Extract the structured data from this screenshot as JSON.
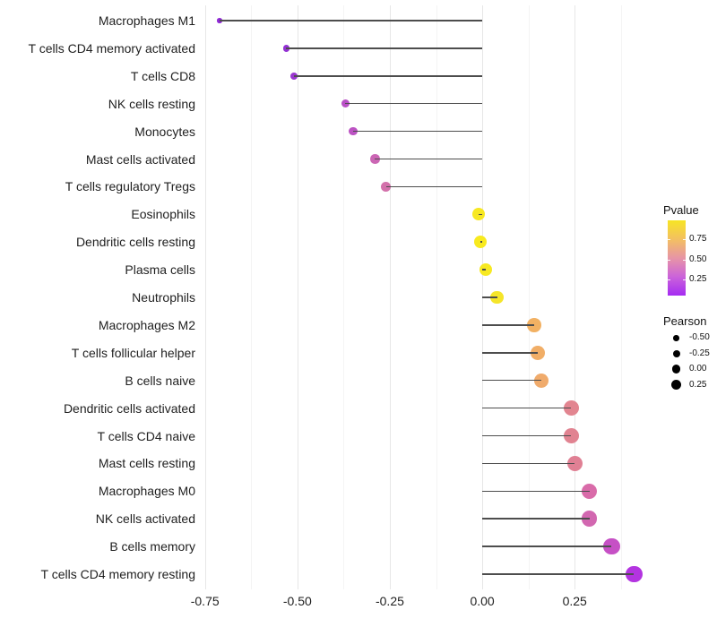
{
  "chart_data": {
    "type": "lollipop",
    "orientation": "horizontal",
    "title": "",
    "xlabel": "",
    "ylabel": "",
    "grid": "vertical-only",
    "x_axis": {
      "tick_labels": [
        "-0.75",
        "-0.50",
        "-0.25",
        "0.00",
        "0.25"
      ],
      "tick_values": [
        -0.75,
        -0.5,
        -0.25,
        0,
        0.25
      ],
      "minor_tick_values": [
        -0.625,
        -0.375,
        -0.125,
        0.125,
        0.375
      ],
      "min": -0.759,
      "max": 0.441,
      "baseline": 0
    },
    "categories": [
      "Macrophages M1",
      "T cells CD4 memory activated",
      "T cells CD8",
      "NK cells resting",
      "Monocytes",
      "Mast cells activated",
      "T cells regulatory  Tregs",
      "Eosinophils",
      "Dendritic cells resting",
      "Plasma cells",
      "Neutrophils",
      "Macrophages M2",
      "T cells follicular helper",
      "B cells naive",
      "Dendritic cells activated",
      "T cells CD4 naive",
      "Mast cells resting",
      "Macrophages M0",
      "NK cells activated",
      "B cells memory",
      "T cells CD4 memory resting"
    ],
    "series": [
      {
        "name": "Pearson",
        "values": [
          -0.71,
          -0.53,
          -0.51,
          -0.37,
          -0.35,
          -0.29,
          -0.26,
          -0.01,
          -0.005,
          0.01,
          0.04,
          0.14,
          0.15,
          0.16,
          0.24,
          0.24,
          0.25,
          0.29,
          0.29,
          0.35,
          0.41
        ],
        "point_colors": [
          "#8F28D6",
          "#9331D3",
          "#9A37D0",
          "#B94FC6",
          "#BC53C3",
          "#CB66B4",
          "#D371AB",
          "#F7E822",
          "#F8EA1F",
          "#F7E922",
          "#F5E52A",
          "#F2B163",
          "#F1AE67",
          "#F0AB6C",
          "#E28590",
          "#E18391",
          "#E08094",
          "#D96BA9",
          "#D267B0",
          "#C650C5",
          "#B334E0"
        ]
      }
    ],
    "stem_color": "#4D4D4D"
  },
  "legend": {
    "pvalue": {
      "title": "Pvalue",
      "tick_labels": [
        "0.75",
        "0.50",
        "0.25"
      ],
      "gradient_stops": [
        "#F7E524",
        "#F3C061",
        "#E795A6",
        "#CB63DA",
        "#A52CF2"
      ]
    },
    "pearson": {
      "title": "Pearson",
      "dot_color": "#000000",
      "items": [
        {
          "label": "-0.50",
          "diameter": 6.5
        },
        {
          "label": "-0.25",
          "diameter": 8
        },
        {
          "label": "0.00",
          "diameter": 9.5
        },
        {
          "label": "0.25",
          "diameter": 11
        }
      ]
    }
  }
}
